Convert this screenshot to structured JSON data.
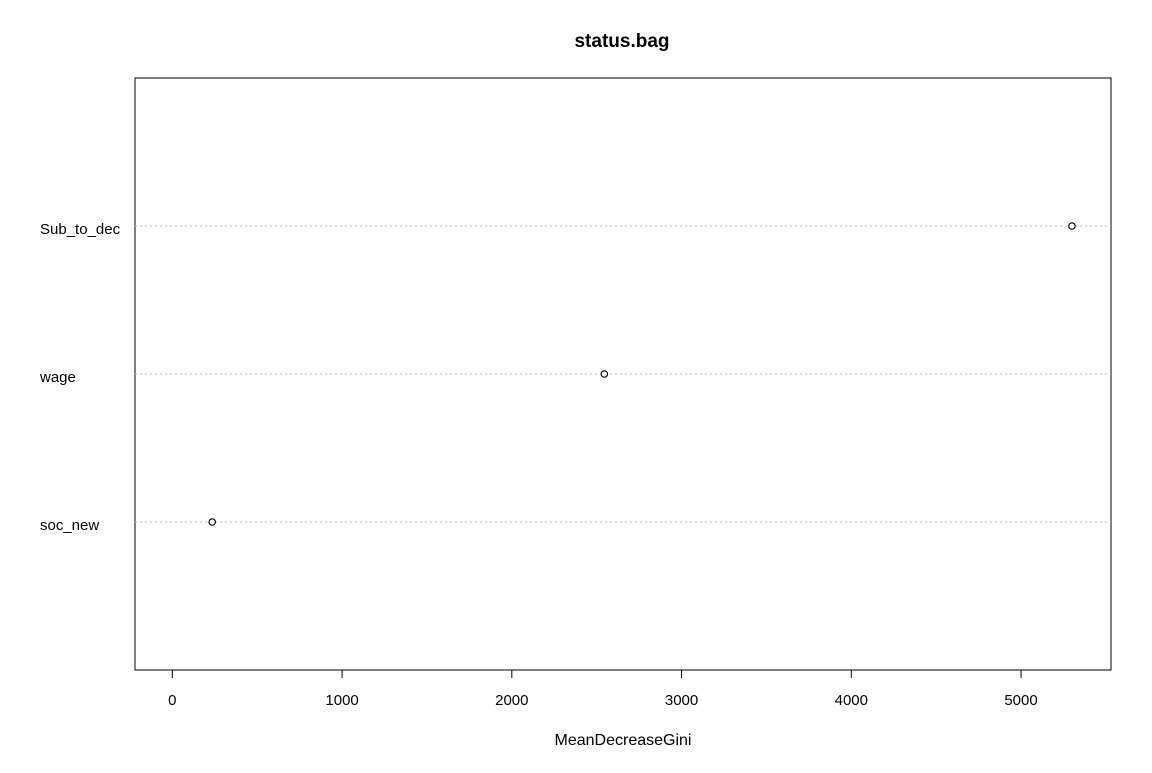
{
  "chart_data": {
    "type": "scatter",
    "title": "status.bag",
    "xlabel": "MeanDecreaseGini",
    "ylabel": "",
    "xlim": [
      -220,
      5530
    ],
    "x_ticks": [
      0,
      1000,
      2000,
      3000,
      4000,
      5000
    ],
    "categories": [
      "Sub_to_dec",
      "wage",
      "soc_new"
    ],
    "values": [
      5300,
      2545,
      235
    ],
    "grid": "dotted horizontal lines at each category",
    "colors": {
      "points": "#000000",
      "grid": "#bebebe",
      "frame": "#000000"
    }
  }
}
